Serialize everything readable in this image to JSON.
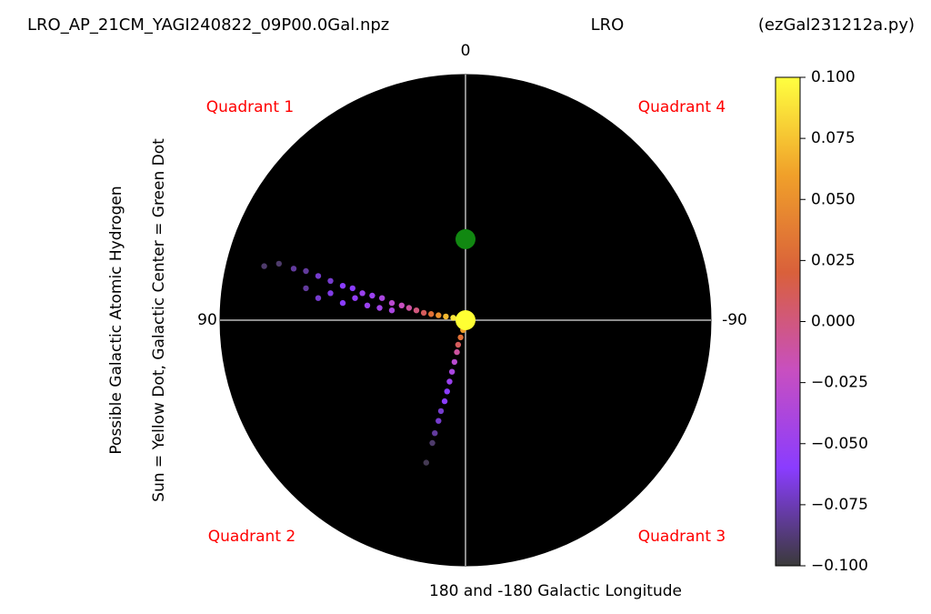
{
  "chart_data": {
    "type": "polar-scatter",
    "title": "LRO_AP_21CM_YAGI240822_09P00.0Gal.npz",
    "subtitle": "LRO",
    "script_name": "(ezGal231212a.py)",
    "ylabel": [
      "Possible Galactic Atomic Hydrogen",
      "Sun = Yellow Dot, Galactic Center = Green Dot"
    ],
    "xlabel": "180 and -180 Galactic Longitude",
    "angle_labels": {
      "top": "0",
      "left": "90",
      "right": "-90"
    },
    "annotations": [
      "Quadrant 1",
      "Quadrant 4",
      "Quadrant 2",
      "Quadrant 3"
    ],
    "xlim": [
      -1,
      1
    ],
    "ylim": [
      -1,
      1
    ],
    "sun": {
      "x": 0,
      "y": 0,
      "color": "#ffff33"
    },
    "galactic_center": {
      "x": 0,
      "y": 0.33,
      "color": "#118811"
    },
    "points": {
      "x": [
        -0.05,
        -0.08,
        -0.11,
        -0.14,
        -0.17,
        -0.2,
        -0.23,
        -0.26,
        -0.3,
        -0.34,
        -0.38,
        -0.42,
        -0.46,
        -0.5,
        -0.55,
        -0.6,
        -0.65,
        -0.7,
        -0.76,
        -0.82,
        -0.3,
        -0.4,
        -0.5,
        -0.6,
        -0.45,
        -0.55,
        -0.35,
        -0.65,
        -0.01,
        -0.02,
        -0.03,
        -0.035,
        -0.045,
        -0.055,
        -0.065,
        -0.075,
        -0.085,
        -0.1,
        -0.11,
        -0.125,
        -0.135,
        -0.16
      ],
      "y": [
        0.01,
        0.015,
        0.02,
        0.025,
        0.03,
        0.04,
        0.05,
        0.06,
        0.07,
        0.09,
        0.1,
        0.11,
        0.13,
        0.14,
        0.16,
        0.18,
        0.2,
        0.21,
        0.23,
        0.22,
        0.04,
        0.06,
        0.07,
        0.09,
        0.09,
        0.11,
        0.05,
        0.13,
        -0.04,
        -0.07,
        -0.1,
        -0.13,
        -0.17,
        -0.21,
        -0.25,
        -0.29,
        -0.33,
        -0.37,
        -0.41,
        -0.46,
        -0.5,
        -0.58
      ],
      "values": [
        0.09,
        0.07,
        0.05,
        0.03,
        0.01,
        0.0,
        -0.01,
        -0.02,
        -0.03,
        -0.04,
        -0.05,
        -0.05,
        -0.06,
        -0.06,
        -0.07,
        -0.07,
        -0.08,
        -0.08,
        -0.09,
        -0.09,
        -0.04,
        -0.05,
        -0.06,
        -0.07,
        -0.055,
        -0.065,
        -0.045,
        -0.08,
        0.06,
        0.03,
        0.01,
        -0.01,
        -0.03,
        -0.04,
        -0.05,
        -0.06,
        -0.06,
        -0.07,
        -0.07,
        -0.08,
        -0.09,
        -0.095
      ]
    },
    "clim": [
      -0.1,
      0.1
    ],
    "colormap": [
      "#3a3a3a",
      "#8a3cff",
      "#c84fc0",
      "#d9603b",
      "#f0a02a",
      "#ffff40"
    ],
    "cticks": [
      {
        "value": 0.1,
        "label": "0.100"
      },
      {
        "value": 0.075,
        "label": "0.075"
      },
      {
        "value": 0.05,
        "label": "0.050"
      },
      {
        "value": 0.025,
        "label": "0.025"
      },
      {
        "value": 0,
        "label": "0.000"
      },
      {
        "value": -0.025,
        "label": "−0.025"
      },
      {
        "value": -0.05,
        "label": "−0.050"
      },
      {
        "value": -0.075,
        "label": "−0.075"
      },
      {
        "value": -0.1,
        "label": "−0.100"
      }
    ]
  }
}
